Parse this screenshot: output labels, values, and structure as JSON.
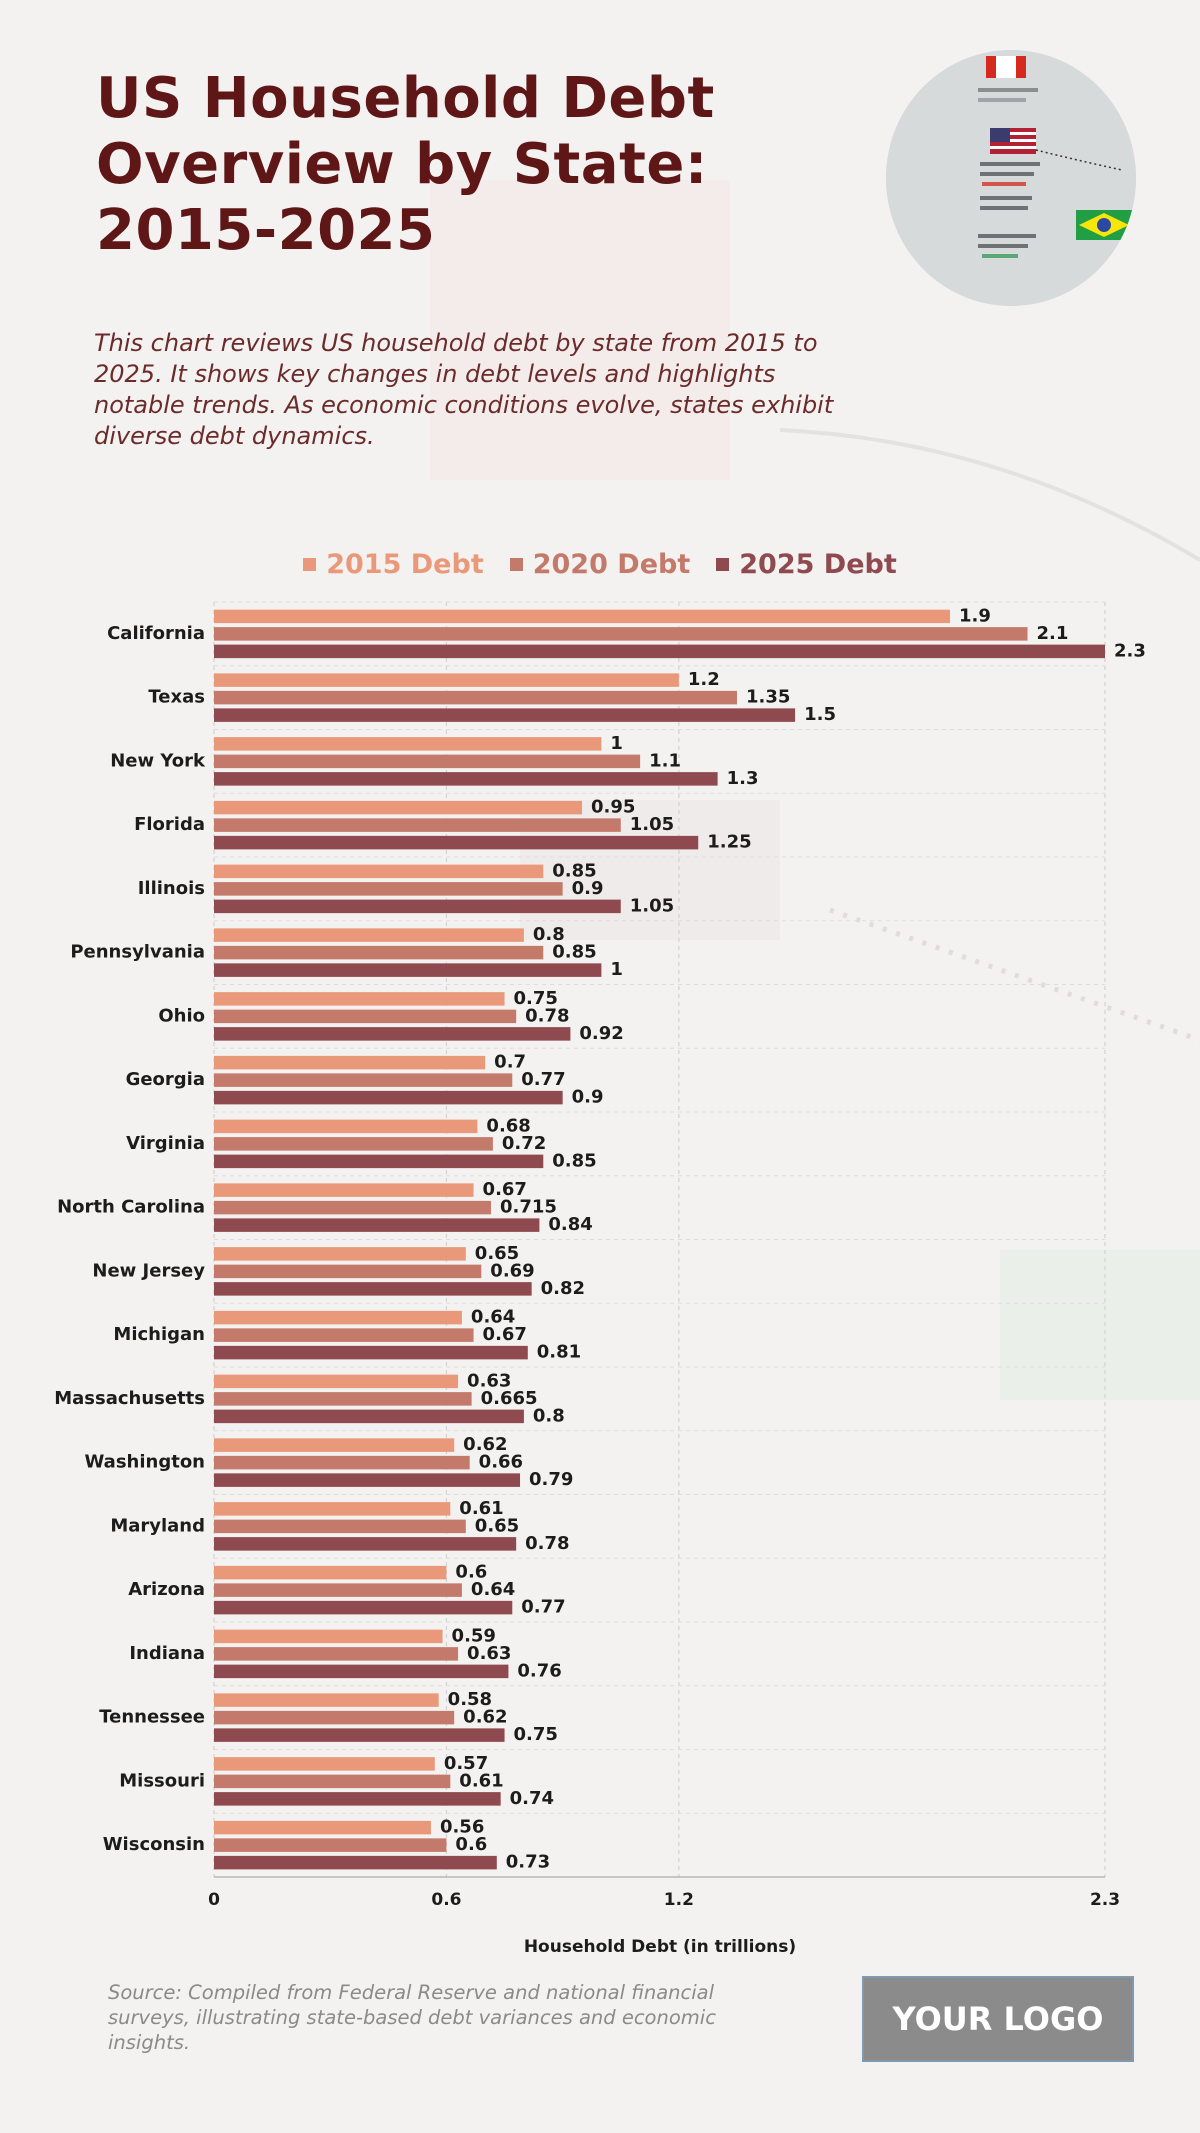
{
  "header": {
    "title": "US Household Debt Overview by State: 2015-2025",
    "subtitle": "This chart reviews US household debt by state from 2015 to 2025. It shows key changes in debt levels and highlights notable trends. As economic conditions evolve, states exhibit diverse debt dynamics."
  },
  "footer": {
    "source": "Source: Compiled from Federal Reserve and national financial surveys, illustrating state-based debt variances and economic insights.",
    "logo": "YOUR LOGO"
  },
  "colors": {
    "title": "#5e1616",
    "series_2015": "#e9997a",
    "series_2020": "#c47a6a",
    "series_2025": "#8e4a4e"
  },
  "chart_data": {
    "type": "bar",
    "orientation": "horizontal",
    "title": "US Household Debt Overview by State: 2015-2025",
    "xlabel": "Household Debt (in trillions)",
    "ylabel": "",
    "xlim": [
      0,
      2.3
    ],
    "xticks": [
      0,
      0.6,
      1.2,
      2.3
    ],
    "grid": true,
    "legend_position": "top-center",
    "categories": [
      "California",
      "Texas",
      "New York",
      "Florida",
      "Illinois",
      "Pennsylvania",
      "Ohio",
      "Georgia",
      "Virginia",
      "North Carolina",
      "New Jersey",
      "Michigan",
      "Massachusetts",
      "Washington",
      "Maryland",
      "Arizona",
      "Indiana",
      "Tennessee",
      "Missouri",
      "Wisconsin"
    ],
    "series": [
      {
        "name": "2015 Debt",
        "color": "#e9997a",
        "values": [
          1.9,
          1.2,
          1,
          0.95,
          0.85,
          0.8,
          0.75,
          0.7,
          0.68,
          0.67,
          0.65,
          0.64,
          0.63,
          0.62,
          0.61,
          0.6,
          0.59,
          0.58,
          0.57,
          0.56
        ]
      },
      {
        "name": "2020 Debt",
        "color": "#c47a6a",
        "values": [
          2.1,
          1.35,
          1.1,
          1.05,
          0.9,
          0.85,
          0.78,
          0.77,
          0.72,
          0.715,
          0.69,
          0.67,
          0.665,
          0.66,
          0.65,
          0.64,
          0.63,
          0.62,
          0.61,
          0.6
        ]
      },
      {
        "name": "2025 Debt",
        "color": "#8e4a4e",
        "values": [
          2.3,
          1.5,
          1.3,
          1.25,
          1.05,
          1,
          0.92,
          0.9,
          0.85,
          0.84,
          0.82,
          0.81,
          0.8,
          0.79,
          0.78,
          0.77,
          0.76,
          0.75,
          0.74,
          0.73
        ]
      }
    ]
  }
}
